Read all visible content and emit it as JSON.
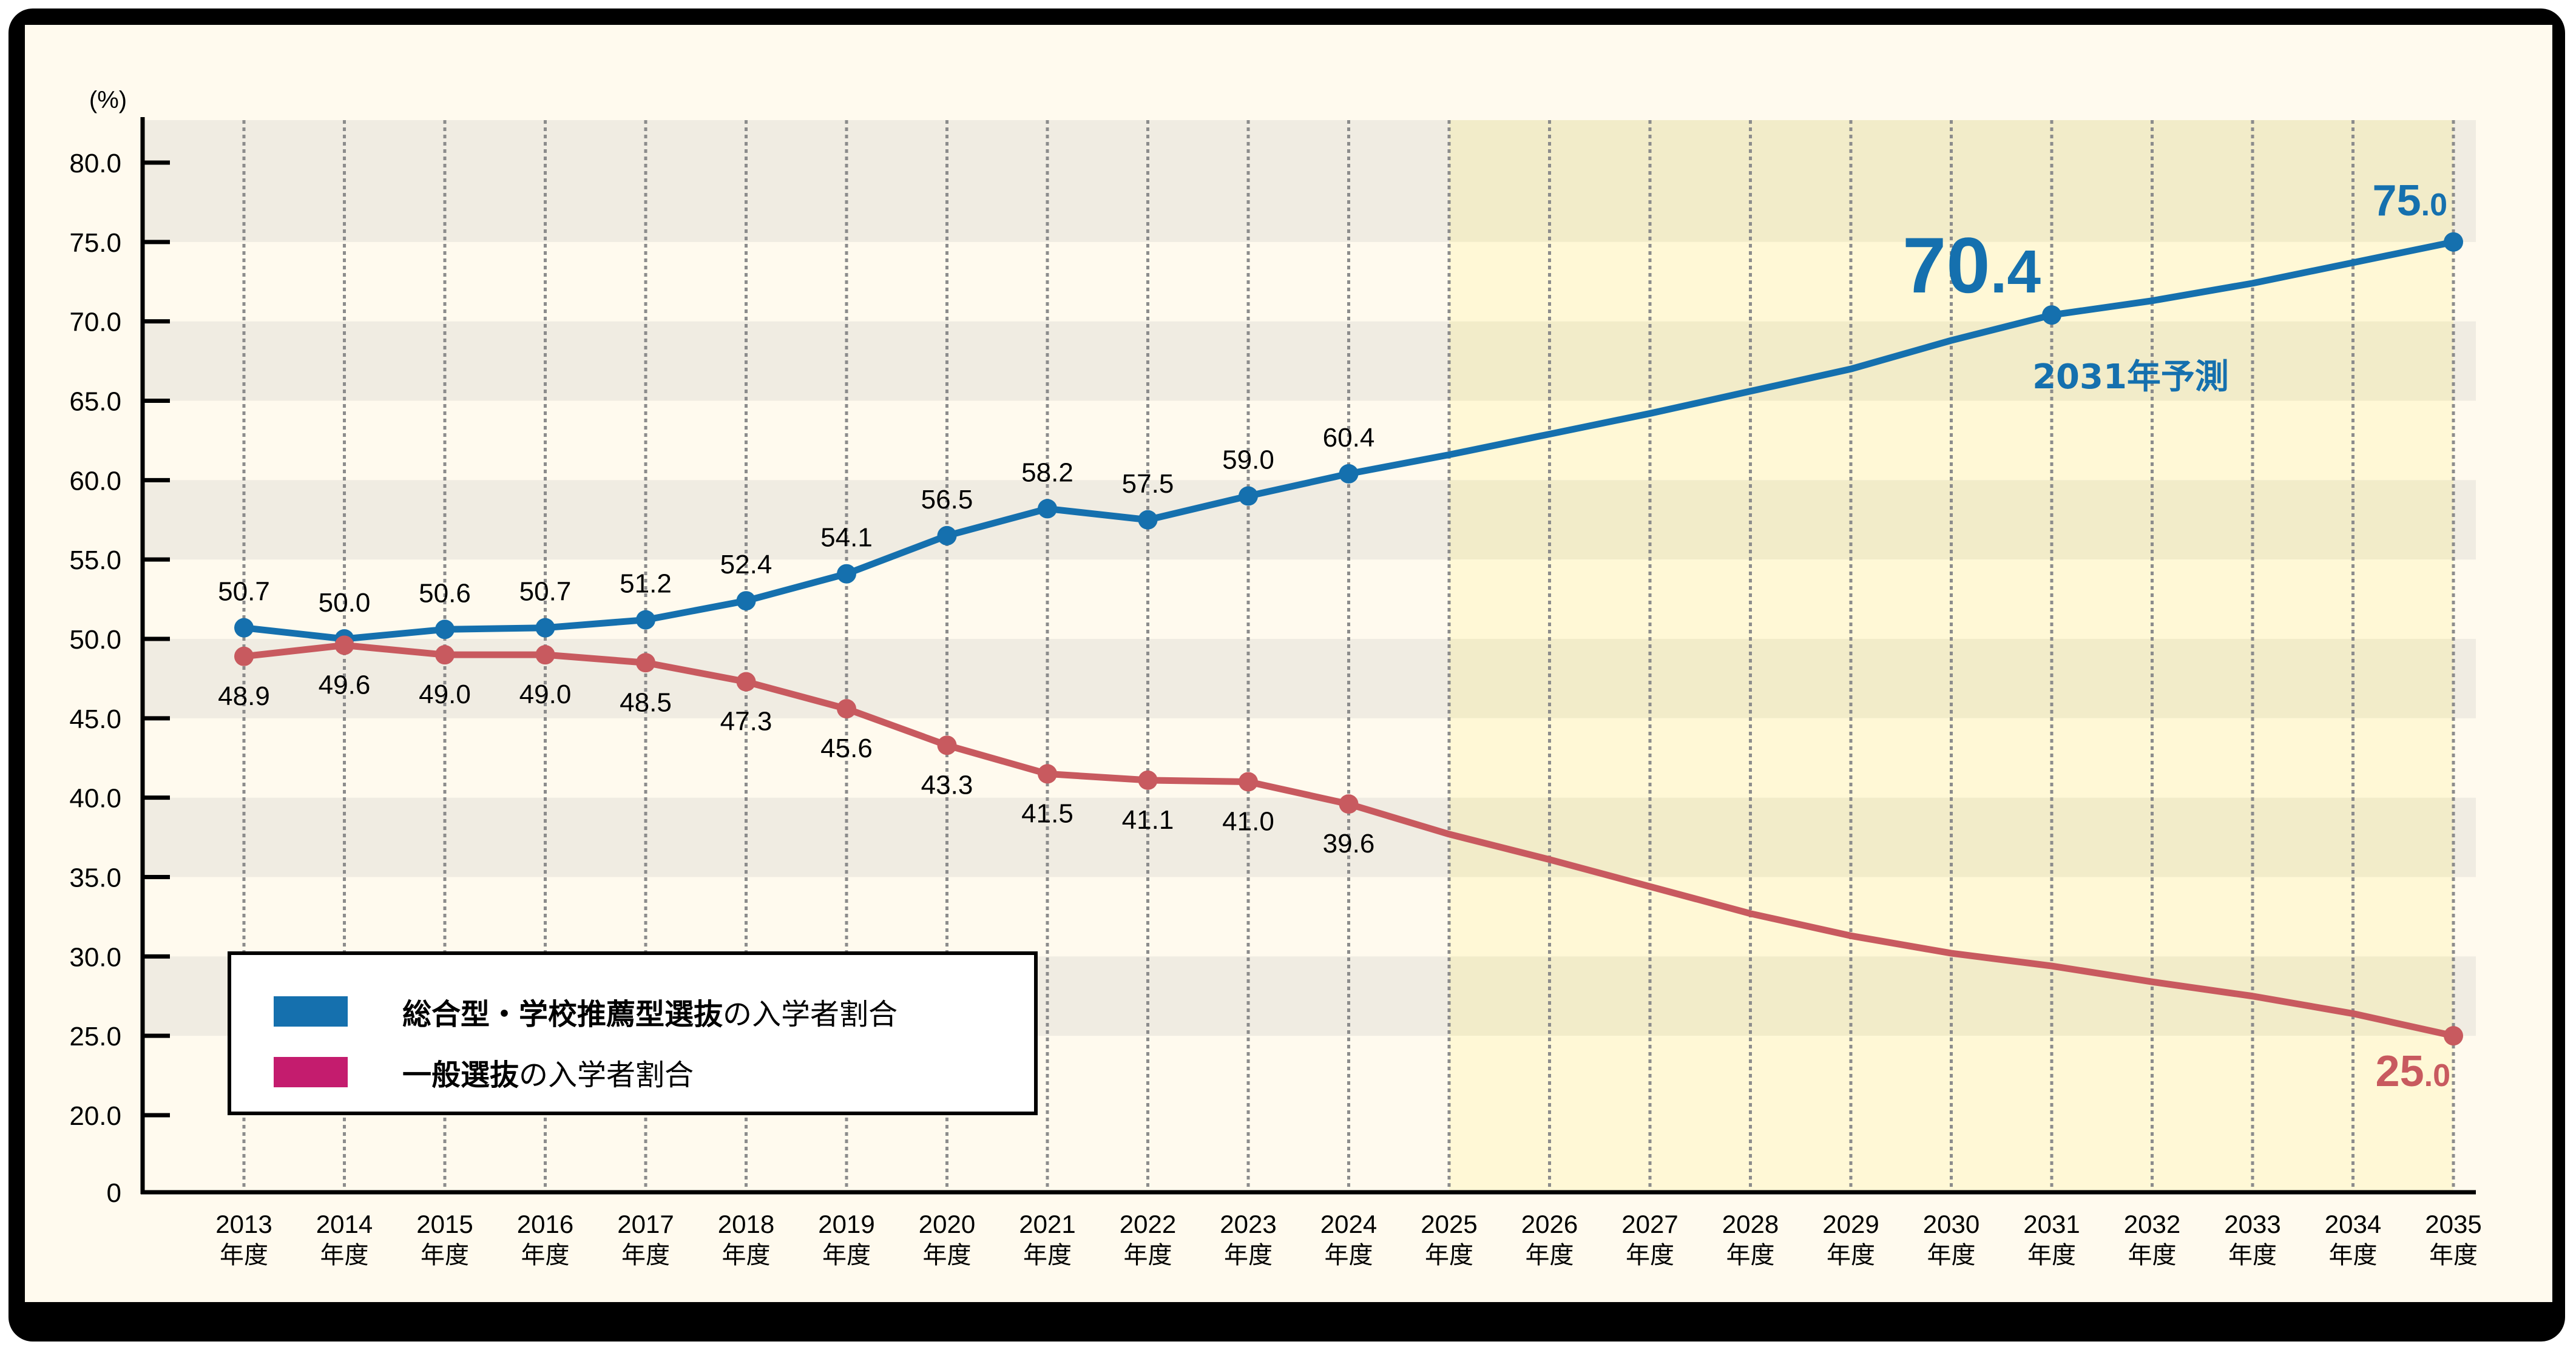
{
  "chart_data": {
    "type": "line",
    "title": "",
    "xlabel": "",
    "ylabel": "(%)",
    "ylim": [
      20,
      80
    ],
    "y_axis_break": true,
    "y_ticks": [
      "0",
      "20.0",
      "25.0",
      "30.0",
      "35.0",
      "40.0",
      "45.0",
      "50.0",
      "55.0",
      "60.0",
      "65.0",
      "70.0",
      "75.0",
      "80.0"
    ],
    "categories": [
      "2013",
      "2014",
      "2015",
      "2016",
      "2017",
      "2018",
      "2019",
      "2020",
      "2021",
      "2022",
      "2023",
      "2024",
      "2025",
      "2026",
      "2027",
      "2028",
      "2029",
      "2030",
      "2031",
      "2032",
      "2033",
      "2034",
      "2035"
    ],
    "category_suffix": "年度",
    "forecast_region_start": "2025",
    "grid": {
      "horizontal_bands": true,
      "vertical_dotted": true
    },
    "legend_position": "lower-left",
    "series": [
      {
        "name": "総合型・学校推薦型選抜の入学者割合",
        "name_bold": "総合型・学校推薦型選抜",
        "name_rest": "の入学者割合",
        "color": "#1570ae",
        "legend_color": "#1570ae",
        "values": [
          50.7,
          50.0,
          50.6,
          50.7,
          51.2,
          52.4,
          54.1,
          56.5,
          58.2,
          57.5,
          59.0,
          60.4,
          61.6,
          62.9,
          64.2,
          65.6,
          67.0,
          68.8,
          70.4,
          71.3,
          72.4,
          73.7,
          75.0
        ],
        "labels": [
          "50.7",
          "50.0",
          "50.6",
          "50.7",
          "51.2",
          "52.4",
          "54.1",
          "56.5",
          "58.2",
          "57.5",
          "59.0",
          "60.4"
        ],
        "markers_at": [
          "2013",
          "2014",
          "2015",
          "2016",
          "2017",
          "2018",
          "2019",
          "2020",
          "2021",
          "2022",
          "2023",
          "2024",
          "2031",
          "2035"
        ]
      },
      {
        "name": "一般選抜の入学者割合",
        "name_bold": "一般選抜",
        "name_rest": "の入学者割合",
        "color": "#c85a5f",
        "legend_color": "#c41c6e",
        "values": [
          48.9,
          49.6,
          49.0,
          49.0,
          48.5,
          47.3,
          45.6,
          43.3,
          41.5,
          41.1,
          41.0,
          39.6,
          37.7,
          36.1,
          34.4,
          32.7,
          31.3,
          30.2,
          29.4,
          28.4,
          27.5,
          26.4,
          25.0
        ],
        "labels": [
          "48.9",
          "49.6",
          "49.0",
          "49.0",
          "48.5",
          "47.3",
          "45.6",
          "43.3",
          "41.5",
          "41.1",
          "41.0",
          "39.6"
        ],
        "markers_at": [
          "2013",
          "2014",
          "2015",
          "2016",
          "2017",
          "2018",
          "2019",
          "2020",
          "2021",
          "2022",
          "2023",
          "2024",
          "2035"
        ]
      }
    ],
    "annotations": [
      {
        "text": "70.4",
        "big": "70",
        "small": ".4",
        "series": 0,
        "at": "2031",
        "color": "#1570ae"
      },
      {
        "text": "2031年予測",
        "series": 0,
        "at": "2031",
        "color": "#1570ae"
      },
      {
        "text": "75.0",
        "big": "75",
        "small": ".0",
        "series": 0,
        "at": "2035",
        "color": "#1570ae"
      },
      {
        "text": "25.0",
        "big": "25",
        "small": ".0",
        "series": 1,
        "at": "2035",
        "color": "#c85a5f"
      }
    ]
  },
  "colors": {
    "panel_bg": "#fffaee",
    "band_gray": "#f0ece2",
    "forecast_light": "#fff8d6",
    "forecast_band": "#f2ecc9",
    "grid_dotted": "#8c8c8c",
    "axis": "#000000"
  }
}
